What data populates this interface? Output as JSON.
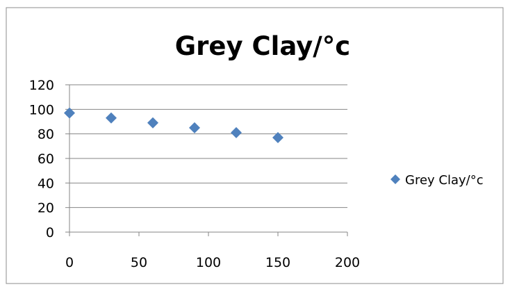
{
  "chart_data": {
    "type": "scatter",
    "title": "Grey Clay/°c",
    "xlabel": "",
    "ylabel": "",
    "xlim": [
      0,
      200
    ],
    "ylim": [
      0,
      120
    ],
    "x_ticks": [
      "0",
      "50",
      "100",
      "150",
      "200"
    ],
    "y_ticks": [
      "0",
      "20",
      "40",
      "60",
      "80",
      "100",
      "120"
    ],
    "grid": "horizontal",
    "legend_position": "right",
    "series": [
      {
        "name": "Grey Clay/°c",
        "color": "#4F81BD",
        "marker": "diamond",
        "x": [
          0,
          30,
          60,
          90,
          120,
          150
        ],
        "y": [
          97,
          93,
          89,
          85,
          81,
          77
        ]
      }
    ]
  }
}
